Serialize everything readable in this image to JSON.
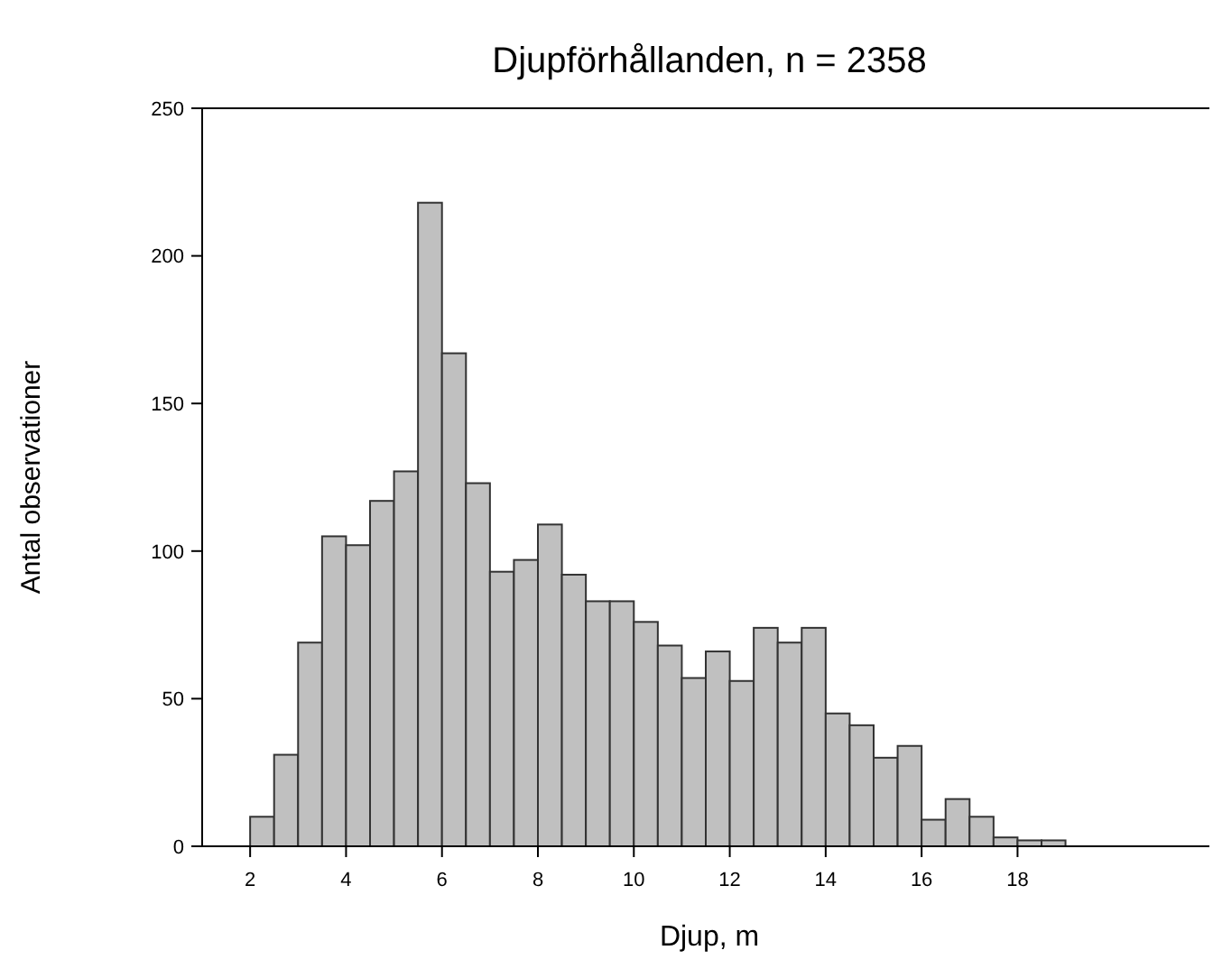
{
  "chart_data": {
    "type": "histogram",
    "title": "Djupförhållanden, n = 2358",
    "xlabel": "Djup, m",
    "ylabel": "Antal observationer",
    "bins": [
      2,
      2.5,
      3,
      3.5,
      4,
      4.5,
      5,
      5.5,
      6,
      6.5,
      7,
      7.5,
      8,
      8.5,
      9,
      9.5,
      10,
      10.5,
      11,
      11.5,
      12,
      12.5,
      13,
      13.5,
      14,
      14.5,
      15,
      15.5,
      16,
      16.5,
      17,
      17.5,
      18,
      18.5,
      19
    ],
    "values": [
      10,
      31,
      69,
      105,
      102,
      117,
      127,
      218,
      167,
      123,
      93,
      97,
      109,
      92,
      83,
      83,
      76,
      68,
      57,
      66,
      56,
      74,
      69,
      74,
      45,
      41,
      30,
      34,
      9,
      16,
      10,
      3,
      2,
      2
    ],
    "color": "#c0c0c0",
    "xlim": [
      1,
      22
    ],
    "xticks": [
      2,
      4,
      6,
      8,
      10,
      12,
      14,
      16,
      18
    ],
    "ylim": [
      0,
      250
    ],
    "yticks": [
      0,
      50,
      100,
      150,
      200,
      250
    ],
    "grid": false
  }
}
